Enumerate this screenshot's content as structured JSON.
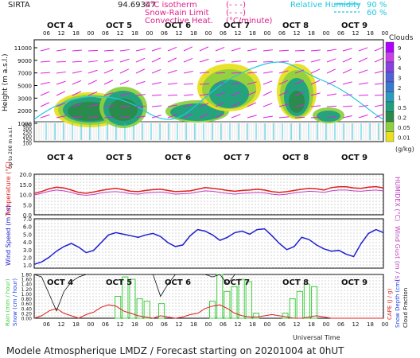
{
  "header": {
    "station": "SIRTA",
    "coords": "94.69347",
    "legend_top": [
      {
        "label": "0°C isotherm",
        "sym": "(- - -)",
        "color": "#e0208a"
      },
      {
        "label": "Snow-Rain Limit",
        "sym": "(- - -)",
        "color": "#e0208a"
      },
      {
        "label": "Convective Heat.",
        "sym": "(°C/minute)",
        "color": "#e0208a"
      }
    ],
    "rh_label": "Relative Humidity",
    "rh_values": [
      "90 %",
      "60 %"
    ]
  },
  "colorbar": {
    "title": "Clouds",
    "unit": "(g/kg)",
    "ticks": [
      "9",
      "5",
      "4",
      "3",
      "2",
      "1",
      "0.5",
      "0.2",
      "0.05",
      "0.01"
    ],
    "colors": [
      "#b000ff",
      "#c840e8",
      "#8a40e0",
      "#5060d8",
      "#3878d0",
      "#2a9cc0",
      "#1ea080",
      "#2a8a4a",
      "#8ed040",
      "#e8e020"
    ]
  },
  "footer": "Modele Atmospherique LMDZ / Forecast starting on 20201004 at 0hUT",
  "chart_data": [
    {
      "type": "heatmap",
      "title": "",
      "xlabel": "",
      "ylabel": "Height (m a.s.l.)",
      "y_ticks_upper": [
        "11000",
        "9000",
        "7000",
        "5000",
        "3000",
        "2000",
        "1000"
      ],
      "y_ticks_lower": [
        "400",
        "300",
        "250",
        "200",
        "150",
        "100"
      ],
      "ylabel_lower": "Up to 200 m a.s.l.",
      "days": [
        "OCT 4",
        "OCT 5",
        "OCT 6",
        "OCT 7",
        "OCT 8",
        "OCT 9"
      ],
      "hours": [
        "06",
        "12",
        "18",
        "00"
      ]
    },
    {
      "type": "line",
      "ylabel": "Temperature (°C)",
      "ylabel_right": "HUMIDEX (°C)",
      "yticks": [
        "20.0",
        "15.0",
        "10.0",
        "5.0",
        "0.0"
      ],
      "ylim": [
        0,
        20
      ],
      "series": [
        {
          "color": "#e02020",
          "values": [
            10.5,
            11.5,
            12.8,
            13.6,
            13.2,
            12.2,
            11.0,
            10.6,
            11.2,
            12.0,
            12.6,
            13.0,
            12.4,
            11.6,
            11.4,
            12.0,
            12.4,
            12.6,
            12.0,
            11.4,
            11.6,
            11.8,
            12.6,
            13.4,
            13.0,
            12.6,
            12.0,
            11.6,
            12.0,
            12.2,
            12.6,
            12.2,
            11.4,
            11.0,
            11.4,
            12.0,
            12.6,
            13.0,
            12.8,
            12.2,
            13.4,
            13.8,
            13.8,
            13.2,
            13.0,
            13.6,
            13.9,
            13.2
          ]
        },
        {
          "color": "#c040c0",
          "values": [
            9.8,
            10.6,
            11.6,
            12.2,
            11.8,
            11.0,
            10.0,
            9.6,
            10.0,
            10.8,
            11.2,
            11.4,
            11.0,
            10.4,
            10.2,
            10.8,
            11.0,
            11.2,
            10.8,
            10.2,
            10.4,
            10.6,
            11.2,
            11.8,
            11.6,
            11.0,
            10.6,
            10.2,
            10.6,
            10.8,
            11.0,
            10.8,
            10.2,
            9.8,
            10.2,
            10.8,
            11.2,
            11.6,
            11.4,
            11.0,
            11.8,
            12.2,
            12.2,
            11.8,
            11.6,
            12.0,
            12.2,
            11.8
          ]
        }
      ]
    },
    {
      "type": "line",
      "ylabel": "Wind Speed (m / s)",
      "ylabel_right": "Wind Gust (m / s)",
      "yticks": [
        "7.0",
        "6.0",
        "5.0",
        "4.0",
        "3.0",
        "2.0",
        "1.0"
      ],
      "ylim": [
        0.6,
        7.0
      ],
      "series": [
        {
          "color": "#2020d0",
          "values": [
            1.1,
            1.4,
            2.0,
            2.8,
            3.4,
            3.8,
            3.3,
            2.6,
            2.9,
            3.9,
            4.9,
            5.2,
            5.0,
            4.8,
            4.6,
            4.9,
            5.1,
            4.7,
            3.9,
            3.4,
            3.6,
            4.8,
            5.6,
            5.4,
            4.9,
            4.2,
            4.6,
            5.2,
            5.4,
            5.0,
            5.6,
            5.7,
            4.8,
            3.8,
            3.0,
            3.4,
            4.6,
            4.3,
            3.6,
            3.1,
            2.8,
            2.9,
            2.4,
            2.1,
            3.8,
            5.1,
            5.6,
            5.2
          ]
        }
      ]
    },
    {
      "type": "bar",
      "ylabel": "Rain (mm / hour)",
      "ylabel2": "Snow (cm / hour)",
      "ylabel_right": "CAPE (J / g)",
      "ylabel_right2": "Snow Depth (cm)",
      "ylabel_right3": "Cloud Fraction",
      "yticks": [
        "1.80",
        "1.60",
        "1.40",
        "1.20",
        "1.00",
        "0.80",
        "0.60",
        "0.40",
        "0.20",
        "0.00"
      ],
      "ylim": [
        0,
        1.8
      ],
      "rain_bars": [
        0,
        0,
        0,
        0,
        0,
        0,
        0,
        0,
        0,
        0,
        0,
        0.9,
        1.7,
        1.6,
        0.8,
        0.7,
        0,
        0.6,
        0,
        0,
        0,
        0,
        0,
        0,
        0.7,
        1.8,
        1.1,
        1.3,
        1.6,
        1.5,
        0.2,
        0,
        0,
        0,
        0.2,
        0.8,
        1.1,
        1.4,
        1.3,
        0,
        0,
        0,
        0,
        0,
        0,
        0,
        0,
        0
      ],
      "cape": [
        0,
        0.1,
        0.3,
        0.4,
        0.2,
        0.1,
        0,
        0.15,
        0.25,
        0.45,
        0.55,
        0.5,
        0.3,
        0.2,
        0.1,
        0.05,
        0,
        0.1,
        0.05,
        0,
        0.05,
        0.15,
        0.2,
        0.4,
        0.5,
        0.55,
        0.4,
        0.2,
        0.1,
        0.05,
        0.05,
        0.1,
        0.15,
        0.1,
        0.05,
        0,
        0,
        0.05,
        0.1,
        0.05,
        0,
        0,
        0,
        0,
        0,
        0,
        0,
        0
      ],
      "cloud_fraction": [
        1.8,
        1.7,
        1.0,
        0.3,
        1.1,
        1.5,
        1.7,
        1.8,
        1.8,
        1.8,
        1.8,
        1.8,
        1.8,
        1.8,
        1.8,
        1.8,
        1.8,
        0.9,
        1.4,
        1.8,
        1.8,
        1.8,
        1.8,
        1.8,
        1.7,
        1.8,
        1.4,
        1.8,
        1.8,
        1.8,
        1.8,
        1.8,
        1.8,
        1.8,
        1.8,
        1.8,
        1.8,
        1.8,
        1.8,
        1.8,
        1.8,
        1.8,
        1.8,
        1.8,
        1.8,
        1.8,
        1.8,
        1.8
      ]
    }
  ],
  "xaxis_bottom_label": "Universal Time"
}
